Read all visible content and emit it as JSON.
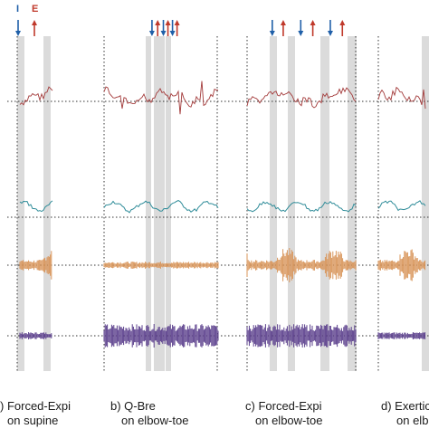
{
  "legend": {
    "inspiration_label": "I",
    "expiration_label": "E",
    "inspiration_color": "#1f5fa8",
    "expiration_color": "#c0392b"
  },
  "chart_data": {
    "type": "line",
    "channels": [
      {
        "id": "pressure",
        "color": "#a33a3a"
      },
      {
        "id": "flow",
        "color": "#2f8c99"
      },
      {
        "id": "emg_orange",
        "color": "#d9955a"
      },
      {
        "id": "emg_purple",
        "color": "#5b3f8c"
      }
    ],
    "panels": [
      {
        "label_line1": ") Forced-Expi",
        "label_line2": "on supine",
        "cues": [
          {
            "type": "I",
            "t": 0.08
          },
          {
            "type": "E",
            "t": 0.4
          }
        ]
      },
      {
        "label_line1": "b) Q-Bre",
        "label_line2": "on elbow-toe",
        "cues": [
          {
            "type": "I",
            "t": 0.42
          },
          {
            "type": "E",
            "t": 0.47
          },
          {
            "type": "I",
            "t": 0.52
          },
          {
            "type": "E",
            "t": 0.56
          },
          {
            "type": "I",
            "t": 0.6
          },
          {
            "type": "E",
            "t": 0.64
          }
        ]
      },
      {
        "label_line1": "c) Forced-Expi",
        "label_line2": "on elbow-toe",
        "cues": [
          {
            "type": "I",
            "t": 0.23
          },
          {
            "type": "E",
            "t": 0.33
          },
          {
            "type": "I",
            "t": 0.49
          },
          {
            "type": "E",
            "t": 0.6
          },
          {
            "type": "I",
            "t": 0.76
          },
          {
            "type": "E",
            "t": 0.87
          }
        ]
      },
      {
        "label_line1": "d) Exertic",
        "label_line2": "on elb",
        "cues": []
      }
    ]
  }
}
